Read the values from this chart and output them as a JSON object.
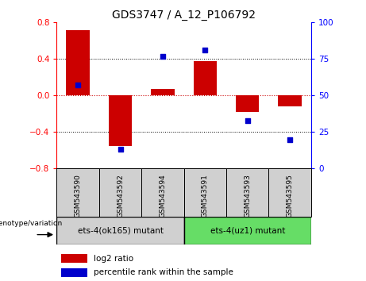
{
  "title": "GDS3747 / A_12_P106792",
  "categories": [
    "GSM543590",
    "GSM543592",
    "GSM543594",
    "GSM543591",
    "GSM543593",
    "GSM543595"
  ],
  "log2_ratios": [
    0.72,
    -0.55,
    0.07,
    0.38,
    -0.18,
    -0.12
  ],
  "percentile_ranks": [
    57,
    13,
    77,
    81,
    33,
    20
  ],
  "ylim_left": [
    -0.8,
    0.8
  ],
  "ylim_right": [
    0,
    100
  ],
  "yticks_left": [
    -0.8,
    -0.4,
    0.0,
    0.4,
    0.8
  ],
  "yticks_right": [
    0,
    25,
    50,
    75,
    100
  ],
  "bar_color": "#cc0000",
  "marker_color": "#0000cc",
  "group1_label": "ets-4(ok165) mutant",
  "group2_label": "ets-4(uz1) mutant",
  "group1_color": "#d0d0d0",
  "group2_color": "#66dd66",
  "genotype_label": "genotype/variation",
  "legend_bar_label": "log2 ratio",
  "legend_marker_label": "percentile rank within the sample",
  "hline0_color": "#cc0000",
  "hline_dotted_color": "#000000",
  "tick_box_color": "#d0d0d0",
  "n_group1": 3,
  "n_group2": 3
}
